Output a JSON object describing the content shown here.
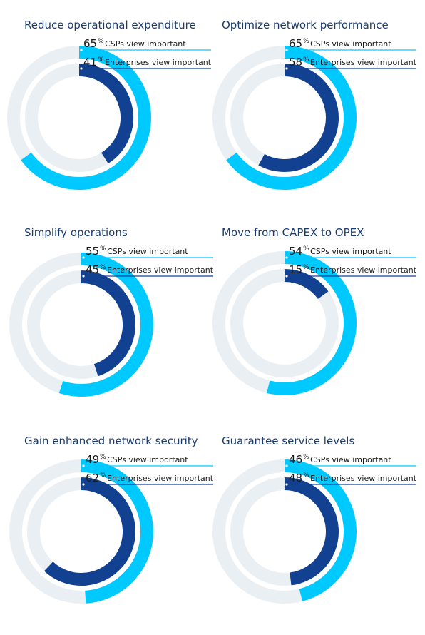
{
  "colors": {
    "csp": "#00c9ff",
    "enterprise": "#124191",
    "track": "#eaeff3",
    "title": "#1a3b6e"
  },
  "chart_data": [
    {
      "type": "donut",
      "title": "Reduce operational expenditure",
      "series": [
        {
          "name": "CSPs view important",
          "value": 65,
          "color": "#00c9ff"
        },
        {
          "name": "Enterprises view important",
          "value": 41,
          "color": "#124191"
        }
      ],
      "unit": "%"
    },
    {
      "type": "donut",
      "title": "Optimize network performance",
      "series": [
        {
          "name": "CSPs view important",
          "value": 65,
          "color": "#00c9ff"
        },
        {
          "name": "Enterprises view important",
          "value": 58,
          "color": "#124191"
        }
      ],
      "unit": "%"
    },
    {
      "type": "donut",
      "title": "Simplify operations",
      "series": [
        {
          "name": "CSPs view important",
          "value": 55,
          "color": "#00c9ff"
        },
        {
          "name": "Enterprises view important",
          "value": 45,
          "color": "#124191"
        }
      ],
      "unit": "%"
    },
    {
      "type": "donut",
      "title": "Move from CAPEX to OPEX",
      "series": [
        {
          "name": "CSPs view important",
          "value": 54,
          "color": "#00c9ff"
        },
        {
          "name": "Enterprises view important",
          "value": 15,
          "color": "#124191"
        }
      ],
      "unit": "%"
    },
    {
      "type": "donut",
      "title": "Gain enhanced network security",
      "series": [
        {
          "name": "CSPs view important",
          "value": 49,
          "color": "#00c9ff"
        },
        {
          "name": "Enterprises view important",
          "value": 62,
          "color": "#124191"
        }
      ],
      "unit": "%"
    },
    {
      "type": "donut",
      "title": "Guarantee service levels",
      "series": [
        {
          "name": "CSPs view important",
          "value": 46,
          "color": "#00c9ff"
        },
        {
          "name": "Enterprises view important",
          "value": 48,
          "color": "#124191"
        }
      ],
      "unit": "%"
    }
  ]
}
